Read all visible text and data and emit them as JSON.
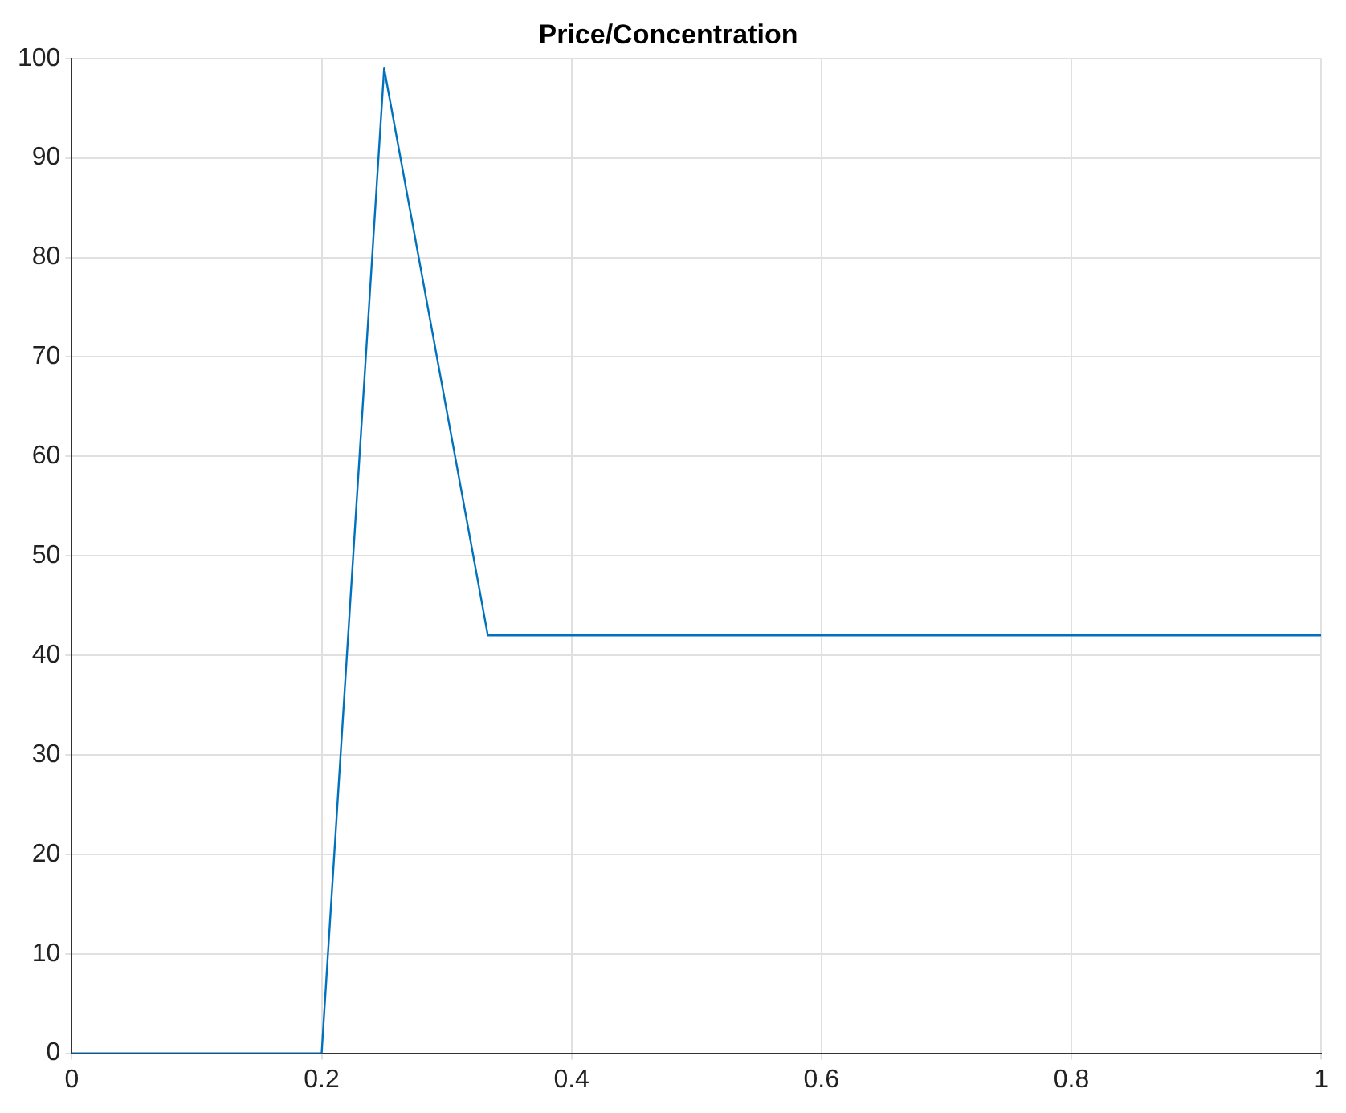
{
  "chart_data": {
    "type": "line",
    "title": "Price/Concentration",
    "x": [
      0,
      0.2,
      0.25,
      0.333,
      1
    ],
    "series": [
      {
        "color": "#0072bd",
        "values": [
          0,
          0,
          99,
          42,
          42
        ]
      }
    ],
    "xlim": [
      0,
      1
    ],
    "xticks": [
      0,
      0.2,
      0.4,
      0.6,
      0.8,
      1
    ],
    "ylim": [
      0,
      100
    ],
    "yticks": [
      0,
      10,
      20,
      30,
      40,
      50,
      60,
      70,
      80,
      90,
      100
    ],
    "grid": true,
    "legend": false,
    "marker": "none",
    "line_style": "solid"
  }
}
